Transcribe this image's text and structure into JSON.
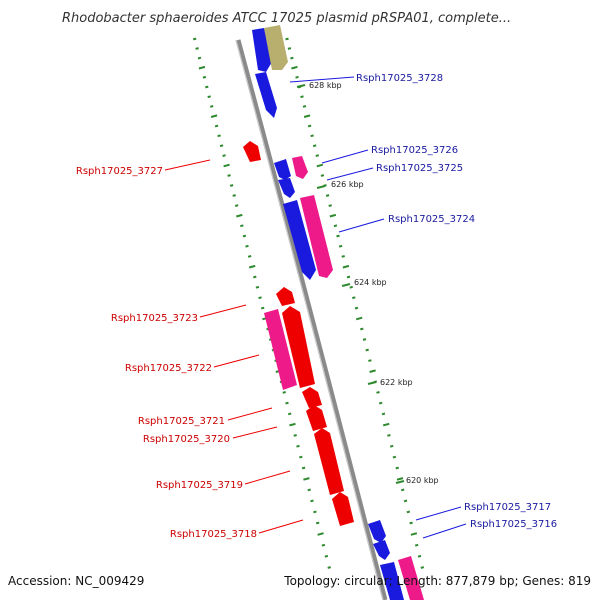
{
  "title": "Rhodobacter sphaeroides ATCC 17025 plasmid pRSPA01, complete...",
  "footer": {
    "accession": "Accession: NC_009429",
    "info": "Topology: circular; Length: 877,879 bp; Genes: 819"
  },
  "colors": {
    "backbone": "#8a8a8a",
    "tick": "#2f8a2f",
    "forward_blue": "#1a1adf",
    "reverse_red": "#ee0000",
    "pink": "#ee1a8a",
    "olive": "#b8ae6e",
    "blue_label": "#1a1aa0",
    "red_label": "#cc0000"
  },
  "kbp_labels": [
    "628 kbp",
    "626 kbp",
    "624 kbp",
    "622 kbp",
    "620 kbp"
  ],
  "genes_right": [
    {
      "id": "Rsph17025_3728"
    },
    {
      "id": "Rsph17025_3726"
    },
    {
      "id": "Rsph17025_3725"
    },
    {
      "id": "Rsph17025_3724"
    },
    {
      "id": "Rsph17025_3717"
    },
    {
      "id": "Rsph17025_3716"
    }
  ],
  "genes_left": [
    {
      "id": "Rsph17025_3727"
    },
    {
      "id": "Rsph17025_3723"
    },
    {
      "id": "Rsph17025_3722"
    },
    {
      "id": "Rsph17025_3721"
    },
    {
      "id": "Rsph17025_3720"
    },
    {
      "id": "Rsph17025_3719"
    },
    {
      "id": "Rsph17025_3718"
    }
  ]
}
